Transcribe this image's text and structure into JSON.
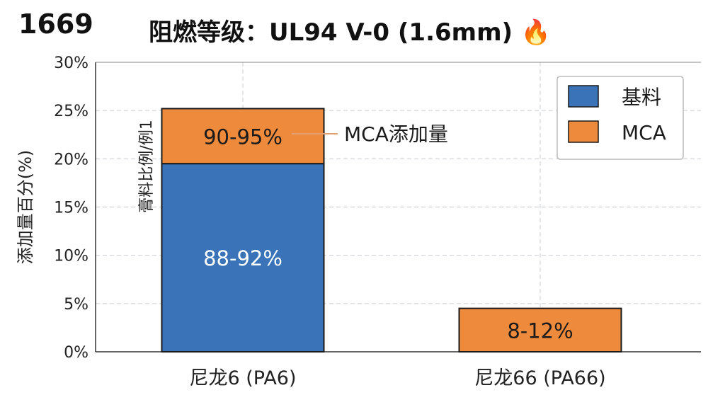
{
  "corner_label": "1669",
  "title": "阻燃等级：UL94 V-0 (1.6mm)",
  "title_icon": "fire-icon",
  "chart_data": {
    "type": "bar",
    "stacked": true,
    "title": "阻燃等级：UL94 V-0 (1.6mm)",
    "ylabel": "添加量百分(%)",
    "ylim": [
      0,
      30
    ],
    "yticks": [
      "0%",
      "5%",
      "10%",
      "15%",
      "20%",
      "25%",
      "30%"
    ],
    "grid": true,
    "categories": [
      "尼龙6 (PA6)",
      "尼龙66 (PA66)"
    ],
    "series": [
      {
        "name": "基料",
        "color": "#3a73b8",
        "values": [
          19.5,
          0
        ],
        "labels": [
          "88-92%",
          ""
        ]
      },
      {
        "name": "MCA",
        "color": "#ee8a3c",
        "values": [
          5.7,
          4.5
        ],
        "labels": [
          "90-95%",
          "8-12%"
        ]
      }
    ],
    "legend_position": "top-right",
    "annotations": [
      {
        "text": "MCA添加量",
        "target": "尼龙6 (PA6) MCA"
      },
      {
        "text": "膏料比例/例1",
        "target": "尼龙6 (PA6)"
      }
    ]
  }
}
